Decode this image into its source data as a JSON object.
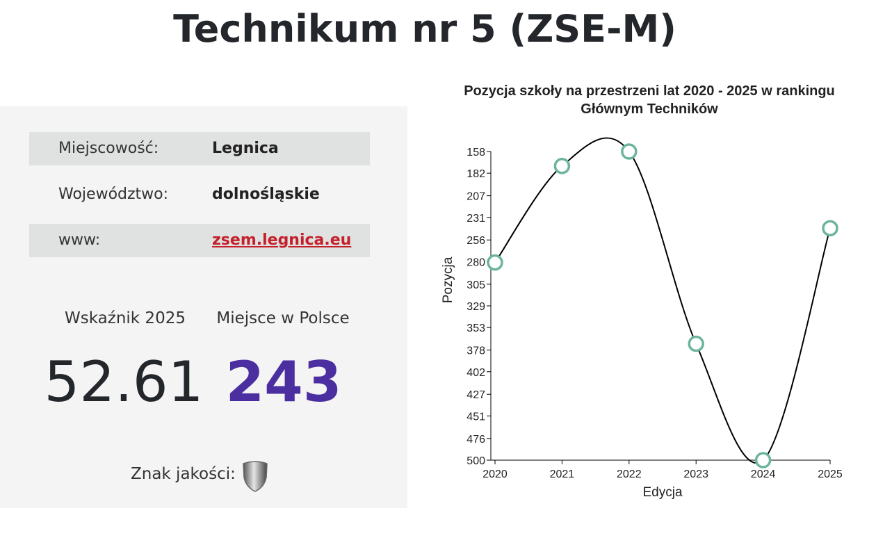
{
  "header": {
    "title": "Technikum nr 5 (ZSE-M)"
  },
  "info": {
    "rows": [
      [
        "Miejscowość:",
        "Legnica"
      ],
      [
        "Województwo:",
        "dolnośląskie"
      ],
      [
        "www:",
        "zsem.legnica.eu"
      ]
    ]
  },
  "stats": {
    "index_label": "Wskaźnik 2025",
    "index_value": 52.61,
    "rank_label": "Miejsce w Polsce",
    "rank_value": 243
  },
  "quality": {
    "label": "Znak jakości:"
  },
  "chart_data": {
    "type": "line",
    "title": "Pozycja szkoły na przestrzeni lat 2020 - 2025 w rankingu Głównym Techników",
    "x_label": "Edycja",
    "y_label": "Pozycja",
    "x": [
      2020,
      2021,
      2022,
      2023,
      2024,
      2025
    ],
    "series": [
      {
        "name": "Pozycja",
        "color": "#6cb49e",
        "line_color": "#000000",
        "values": [
          281,
          174,
          158,
          371,
          500,
          243
        ]
      }
    ],
    "xlim": [
      2020,
      2025
    ],
    "xticks": [
      2020,
      2021,
      2022,
      2023,
      2024,
      2025
    ],
    "ylim": [
      158,
      500
    ],
    "y_inverted": true,
    "yticks": [
      158,
      182,
      207,
      231,
      256,
      280,
      305,
      329,
      353,
      378,
      402,
      427,
      451,
      476,
      500
    ],
    "curve": "smooth",
    "grid": false
  }
}
